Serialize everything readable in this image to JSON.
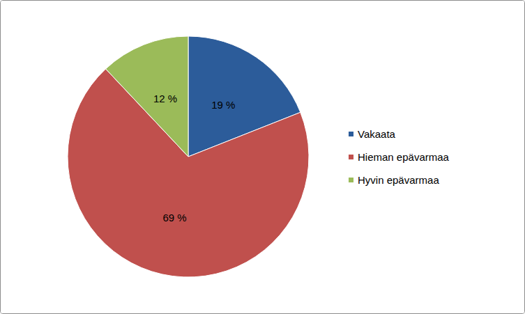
{
  "chart_data": {
    "type": "pie",
    "categories": [
      "Vakaata",
      "Hieman epävarmaa",
      "Hyvin epävarmaa"
    ],
    "values": [
      19,
      69,
      12
    ],
    "value_labels": [
      "19 %",
      "69 %",
      "12 %"
    ],
    "colors": [
      "#2c5c9a",
      "#c0504d",
      "#9bbb59"
    ],
    "data_labels": true,
    "legend": "right"
  }
}
